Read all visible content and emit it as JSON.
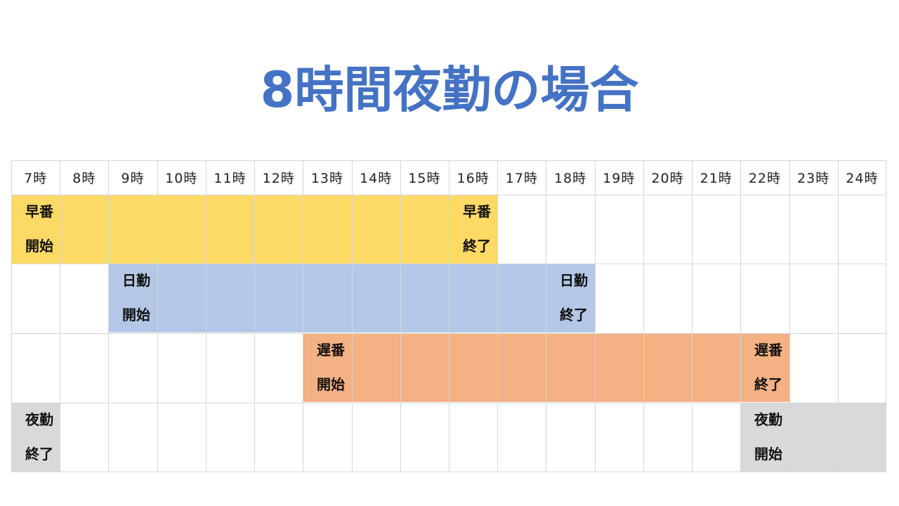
{
  "title": "8時間夜勤の場合",
  "hours": [
    "7時",
    "8時",
    "9時",
    "10時",
    "11時",
    "12時",
    "13時",
    "14時",
    "15時",
    "16時",
    "17時",
    "18時",
    "19時",
    "20時",
    "21時",
    "22時",
    "23時",
    "24時"
  ],
  "colors": {
    "title": "#4472C4",
    "early": "#FDD966",
    "day": "#B4C7E7",
    "late": "#F4B183",
    "night": "#D9D9D9"
  },
  "shifts": [
    {
      "name": "早番",
      "start": "7時",
      "end": "17時",
      "start_label_1": "早番",
      "start_label_2": "開始",
      "end_label_1": "早番",
      "end_label_2": "終了"
    },
    {
      "name": "日勤",
      "start": "9時",
      "end": "19時",
      "start_label_1": "日勤",
      "start_label_2": "開始",
      "end_label_1": "日勤",
      "end_label_2": "終了"
    },
    {
      "name": "遅番",
      "start": "13時",
      "end": "23時",
      "start_label_1": "遅番",
      "start_label_2": "開始",
      "end_label_1": "遅番",
      "end_label_2": "終了"
    },
    {
      "name": "夜勤",
      "start": "22時",
      "end": "8時",
      "start_label_1": "夜勤",
      "start_label_2": "開始",
      "end_label_1": "夜勤",
      "end_label_2": "終了"
    }
  ]
}
